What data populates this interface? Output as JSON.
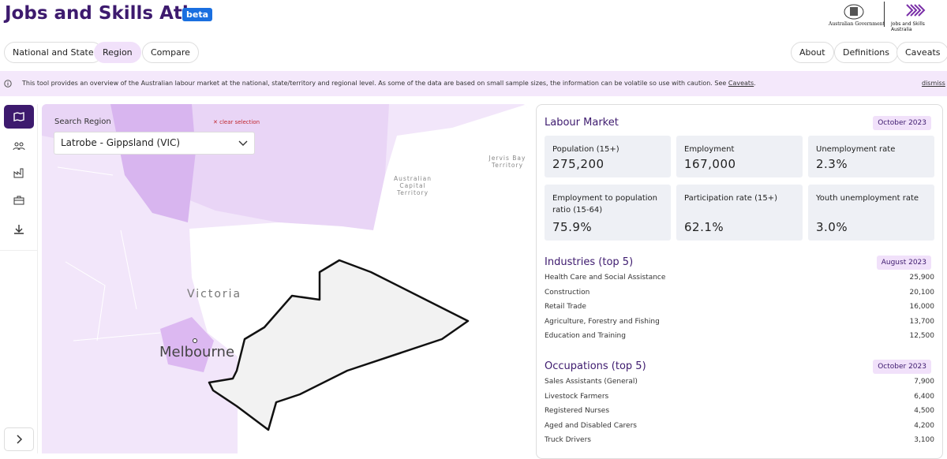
{
  "header": {
    "title": "Jobs and Skills Atlas",
    "badge": "beta",
    "logos": [
      "Australian Government",
      "Jobs and Skills Australia"
    ]
  },
  "nav": {
    "tabs": [
      "National and State",
      "Region",
      "Compare"
    ],
    "links": [
      "About",
      "Definitions",
      "Caveats"
    ]
  },
  "banner": {
    "text": "This tool provides an overview of the Australian labour market at the national, state/territory and regional level. As some of the data are based on small sample sizes, the information can be volatile so use with caution. See ",
    "link": "Caveats",
    "text_end": ".",
    "dismiss": "dismiss"
  },
  "map": {
    "search_label": "Search Region",
    "clear": "clear selection",
    "selected": "Latrobe - Gippsland (VIC)",
    "labels": [
      "Victoria",
      "Melbourne",
      "Australian Capital Territory",
      "Jervis Bay Territory"
    ]
  },
  "panel": {
    "labour_market": {
      "title": "Labour Market",
      "date": "October 2023",
      "stats": [
        {
          "label": "Population (15+)",
          "value": "275,200"
        },
        {
          "label": "Employment",
          "value": "167,000"
        },
        {
          "label": "Unemployment rate",
          "value": "2.3%"
        },
        {
          "label": "Employment to population ratio (15-64)",
          "value": "75.9%"
        },
        {
          "label": "Participation rate (15+)",
          "value": "62.1%"
        },
        {
          "label": "Youth unemployment rate",
          "value": "3.0%"
        }
      ]
    },
    "industries": {
      "title": "Industries (top 5)",
      "date": "August 2023",
      "rows": [
        [
          "Health Care and Social Assistance",
          "25,900"
        ],
        [
          "Construction",
          "20,100"
        ],
        [
          "Retail Trade",
          "16,000"
        ],
        [
          "Agriculture, Forestry and Fishing",
          "13,700"
        ],
        [
          "Education and Training",
          "12,500"
        ]
      ]
    },
    "occupations": {
      "title": "Occupations (top 5)",
      "date": "October 2023",
      "rows": [
        [
          "Sales Assistants (General)",
          "7,900"
        ],
        [
          "Livestock Farmers",
          "6,400"
        ],
        [
          "Registered Nurses",
          "4,500"
        ],
        [
          "Aged and Disabled Carers",
          "4,200"
        ],
        [
          "Truck Drivers",
          "3,100"
        ]
      ]
    }
  }
}
